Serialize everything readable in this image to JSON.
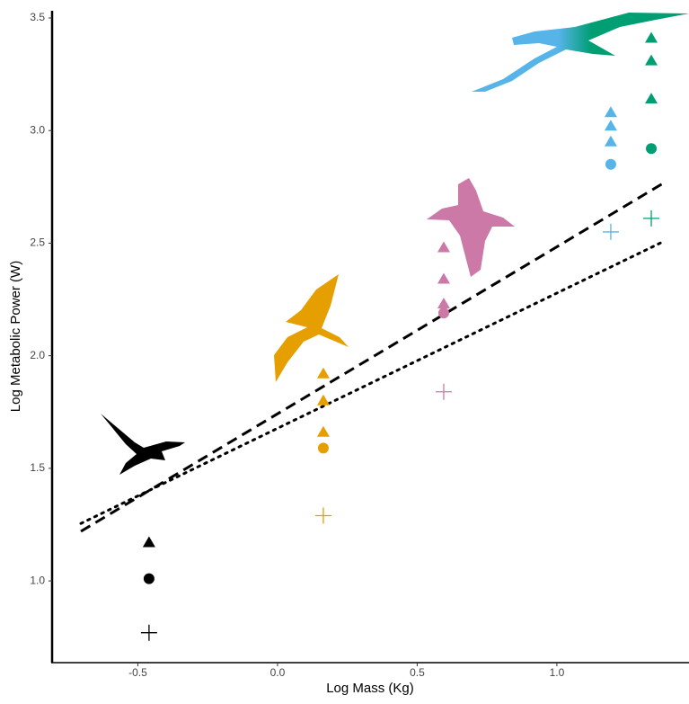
{
  "chart_data": {
    "type": "scatter",
    "x_label": "Log Mass (Kg)",
    "y_label": "Log Metabolic Power (W)",
    "xlim": [
      -0.807,
      1.473
    ],
    "ylim": [
      0.637,
      3.532
    ],
    "xticks": [
      -0.5,
      {
        "value": 0,
        "label": "0.0"
      },
      0.5,
      {
        "value": 1,
        "label": "1.0"
      }
    ],
    "yticks": [
      {
        "value": 1,
        "label": "1.0"
      },
      1.5,
      {
        "value": 2,
        "label": "2.0"
      },
      2.5,
      {
        "value": 3,
        "label": "3.0"
      },
      3.5
    ],
    "grid": false,
    "series": [
      {
        "color": "#000000",
        "x": [
          -0.46,
          -0.46,
          -0.46
        ],
        "values": [
          1.17,
          1.01,
          0.77
        ],
        "markers": [
          "triangle",
          "circle",
          "plus"
        ]
      },
      {
        "color": "#e69f00",
        "x": [
          0.164,
          0.164,
          0.164,
          0.164,
          0.164
        ],
        "values": [
          1.92,
          1.8,
          1.66,
          1.59,
          1.29
        ],
        "markers": [
          "triangle",
          "triangle",
          "triangle",
          "circle",
          "plus"
        ]
      },
      {
        "color": "#cc79a7",
        "x": [
          0.595,
          0.595,
          0.595,
          0.595,
          0.595
        ],
        "values": [
          2.48,
          2.34,
          2.23,
          2.19,
          1.84
        ],
        "markers": [
          "triangle",
          "triangle",
          "triangle",
          "circle",
          "plus"
        ]
      },
      {
        "color": "#56b4e9",
        "x": [
          1.193,
          1.193,
          1.193,
          1.193,
          1.193
        ],
        "values": [
          3.08,
          3.02,
          2.95,
          2.85,
          2.55
        ],
        "markers": [
          "triangle",
          "triangle",
          "triangle",
          "circle",
          "plus"
        ]
      },
      {
        "color": "#009e73",
        "x": [
          1.338,
          1.338,
          1.338,
          1.338,
          1.338
        ],
        "values": [
          3.41,
          3.31,
          3.14,
          2.92,
          2.61
        ],
        "markers": [
          "triangle",
          "triangle",
          "triangle",
          "circle",
          "plus"
        ]
      }
    ],
    "lines": [
      {
        "style": "dashed",
        "color": "#000000",
        "x": [
          -0.704,
          1.386
        ],
        "values": [
          1.22,
          2.77
        ]
      },
      {
        "style": "dotted",
        "color": "#000000",
        "x": [
          -0.704,
          1.386
        ],
        "values": [
          1.255,
          2.51
        ]
      }
    ]
  }
}
